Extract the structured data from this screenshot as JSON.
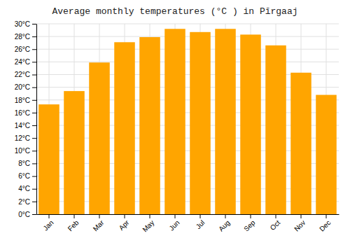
{
  "chart_data": {
    "type": "bar",
    "title": "Average monthly temperatures (°C ) in Pīrgaaj",
    "categories": [
      "Jan",
      "Feb",
      "Mar",
      "Apr",
      "May",
      "Jun",
      "Jul",
      "Aug",
      "Sep",
      "Oct",
      "Nov",
      "Dec"
    ],
    "values": [
      17.3,
      19.4,
      23.9,
      27.1,
      27.9,
      29.2,
      28.7,
      29.2,
      28.3,
      26.6,
      22.3,
      18.8
    ],
    "color": "#FFA500",
    "ylim": [
      0,
      30
    ],
    "yticks": [
      {
        "value": 0,
        "label": "0°C"
      },
      {
        "value": 2,
        "label": "2°C"
      },
      {
        "value": 4,
        "label": "4°C"
      },
      {
        "value": 6,
        "label": "6°C"
      },
      {
        "value": 8,
        "label": "8°C"
      },
      {
        "value": 10,
        "label": "10°C"
      },
      {
        "value": 12,
        "label": "12°C"
      },
      {
        "value": 14,
        "label": "14°C"
      },
      {
        "value": 16,
        "label": "16°C"
      },
      {
        "value": 18,
        "label": "18°C"
      },
      {
        "value": 20,
        "label": "20°C"
      },
      {
        "value": 22,
        "label": "22°C"
      },
      {
        "value": 24,
        "label": "24°C"
      },
      {
        "value": 26,
        "label": "26°C"
      },
      {
        "value": 28,
        "label": "28°C"
      },
      {
        "value": 30,
        "label": "30°C"
      }
    ],
    "grid": true
  }
}
